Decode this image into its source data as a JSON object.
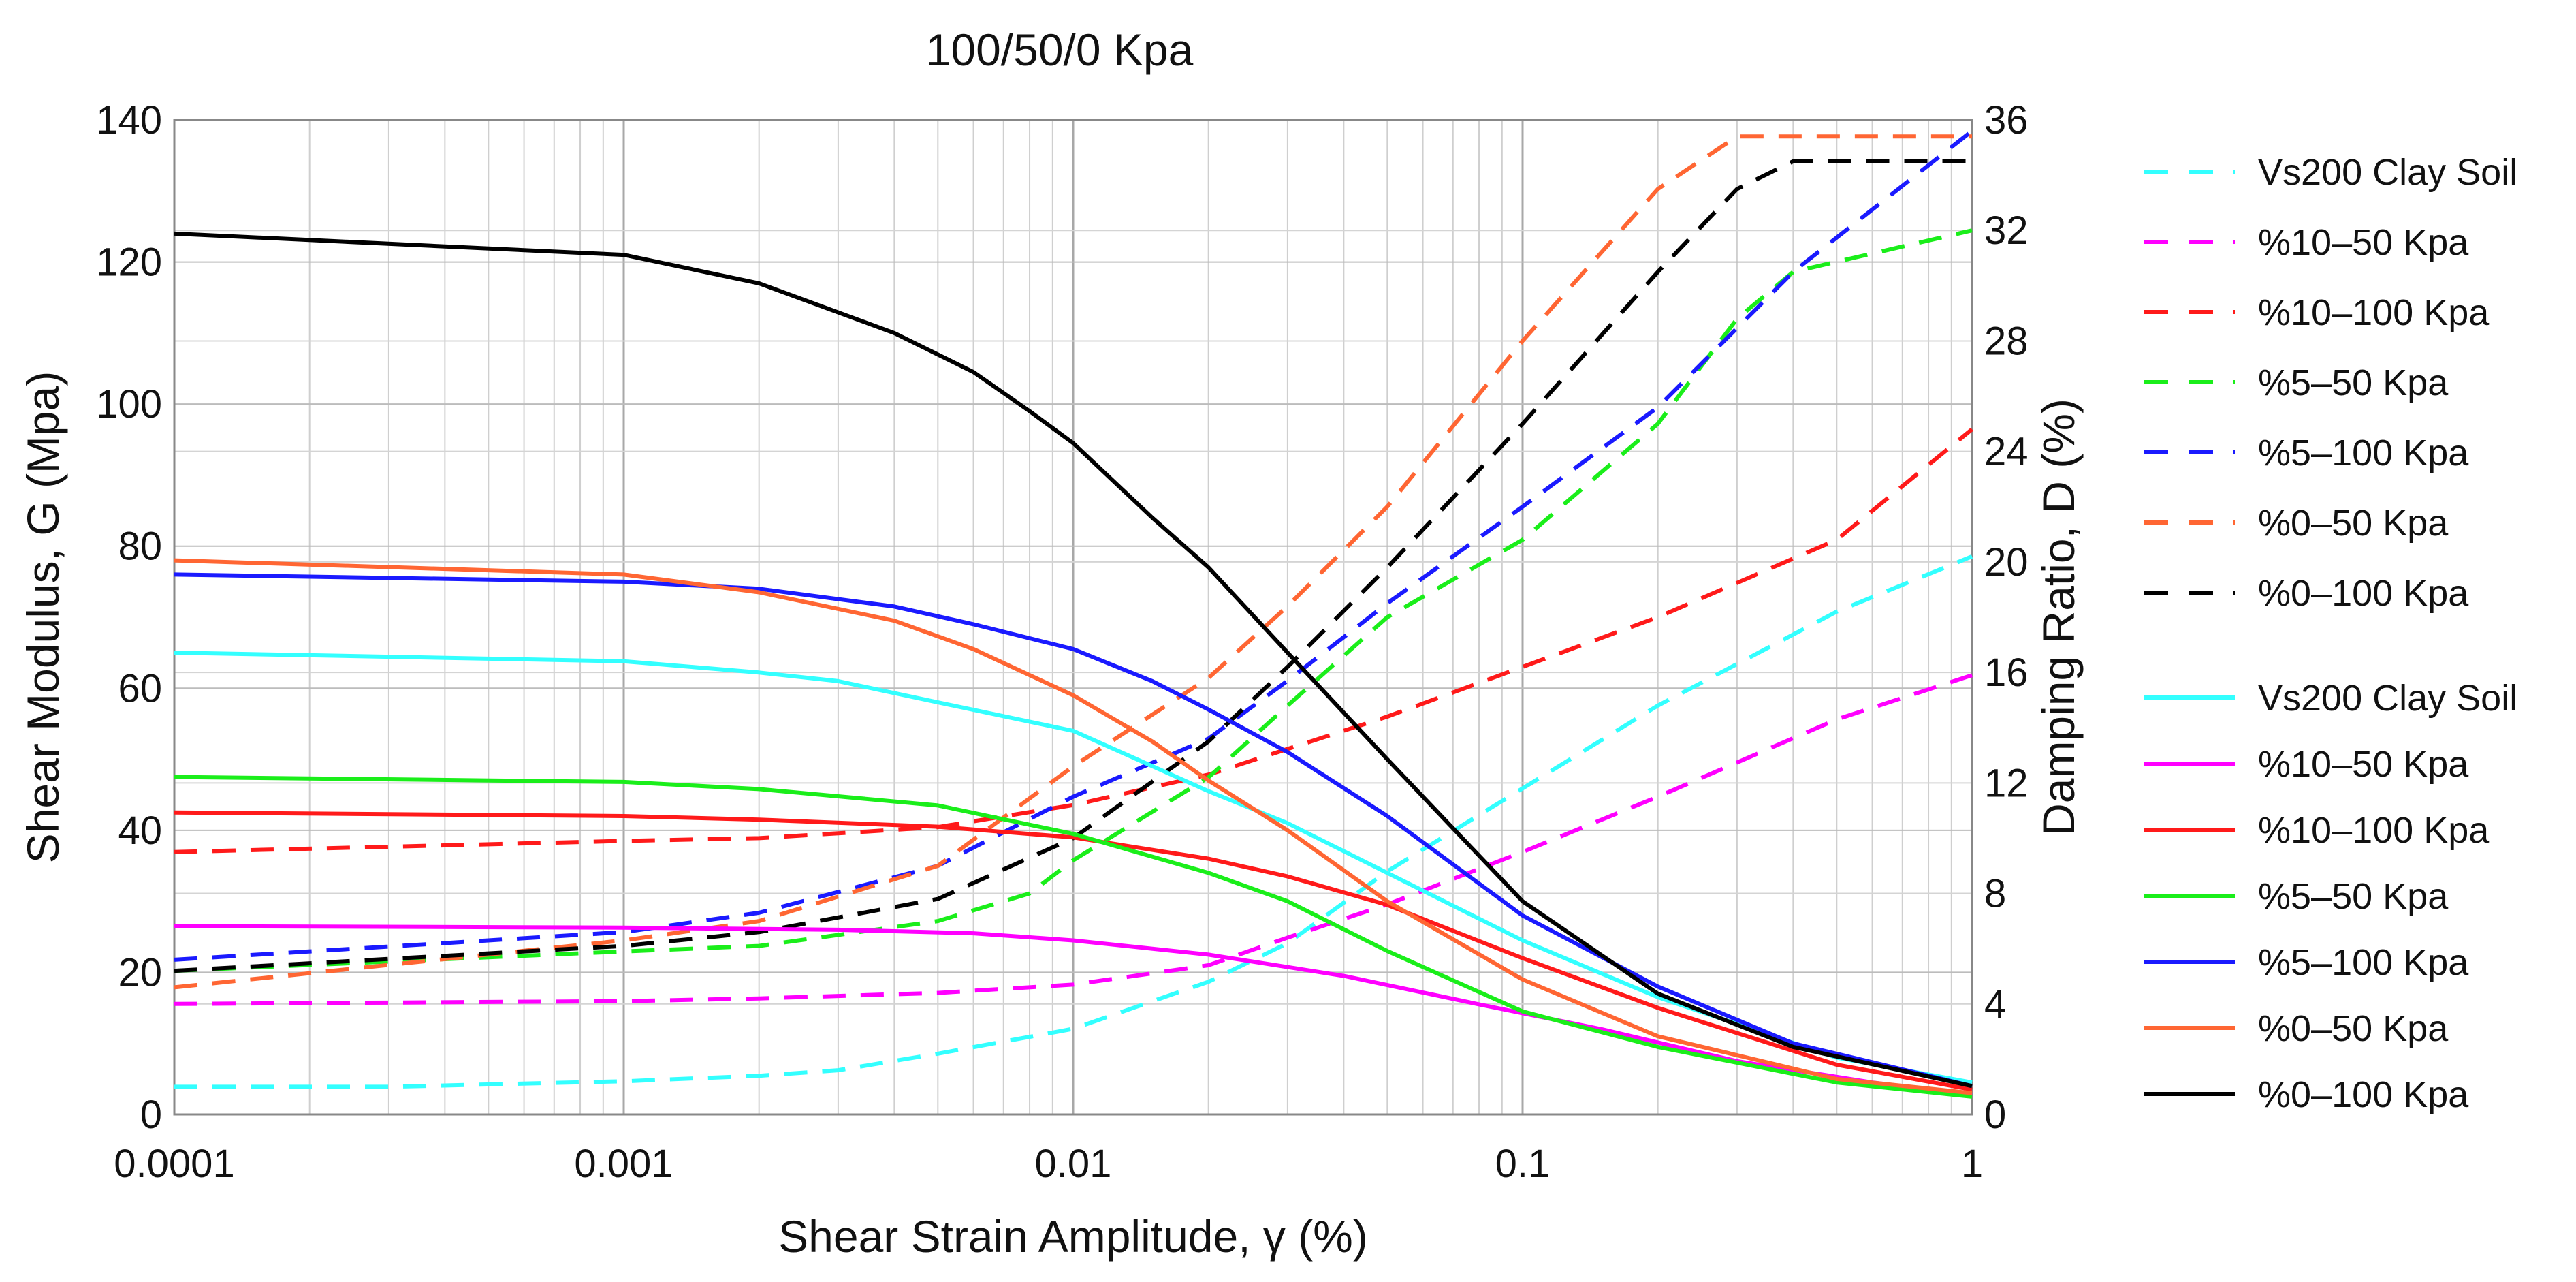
{
  "chart_data": {
    "type": "line",
    "title": "100/50/0 Kpa",
    "xlabel": "Shear Strain Amplitude, γ (%)",
    "ylabel": "Shear Modulus, G (Mpa)",
    "y2label": "Damping Ratio, D (%)",
    "xscale": "log",
    "xlim": [
      0.0001,
      1
    ],
    "ylim": [
      0,
      140
    ],
    "y2lim": [
      0,
      36
    ],
    "x_ticks": [
      {
        "value": 0.0001,
        "label": "0.0001"
      },
      {
        "value": 0.001,
        "label": "0.001"
      },
      {
        "value": 0.01,
        "label": "0.01"
      },
      {
        "value": 0.1,
        "label": "0.1"
      },
      {
        "value": 1,
        "label": "1"
      }
    ],
    "y_ticks": [
      {
        "value": 0,
        "label": "0"
      },
      {
        "value": 20,
        "label": "20"
      },
      {
        "value": 40,
        "label": "40"
      },
      {
        "value": 60,
        "label": "60"
      },
      {
        "value": 80,
        "label": "80"
      },
      {
        "value": 100,
        "label": "100"
      },
      {
        "value": 120,
        "label": "120"
      },
      {
        "value": 140,
        "label": "140"
      }
    ],
    "y2_ticks": [
      {
        "value": 0,
        "label": "0"
      },
      {
        "value": 4,
        "label": "4"
      },
      {
        "value": 8,
        "label": "8"
      },
      {
        "value": 12,
        "label": "12"
      },
      {
        "value": 16,
        "label": "16"
      },
      {
        "value": 20,
        "label": "20"
      },
      {
        "value": 24,
        "label": "24"
      },
      {
        "value": 28,
        "label": "28"
      },
      {
        "value": 32,
        "label": "32"
      },
      {
        "value": 36,
        "label": "36"
      }
    ],
    "grid": true,
    "damping_series": [
      {
        "name": "Vs200 Clay Soil",
        "color": "#33ffff",
        "style": "dashed",
        "axis": "right",
        "x": [
          0.0001,
          0.0003,
          0.001,
          0.002,
          0.003,
          0.005,
          0.01,
          0.02,
          0.03,
          0.05,
          0.1,
          0.2,
          0.5,
          1
        ],
        "y": [
          1,
          1,
          1.2,
          1.4,
          1.6,
          2.2,
          3.1,
          4.8,
          6.2,
          8.8,
          11.8,
          14.8,
          18.2,
          20.2
        ]
      },
      {
        "name": "%10–50 Kpa",
        "color": "#ff00ff",
        "style": "dashed",
        "axis": "right",
        "x": [
          0.0001,
          0.001,
          0.002,
          0.005,
          0.01,
          0.02,
          0.03,
          0.05,
          0.1,
          0.2,
          0.5,
          1
        ],
        "y": [
          4,
          4.1,
          4.2,
          4.4,
          4.7,
          5.4,
          6.4,
          7.6,
          9.5,
          11.5,
          14.3,
          15.9
        ]
      },
      {
        "name": "%10–100 Kpa",
        "color": "#ff1a1a",
        "style": "dashed",
        "axis": "right",
        "x": [
          0.0001,
          0.001,
          0.002,
          0.005,
          0.01,
          0.02,
          0.05,
          0.1,
          0.2,
          0.5,
          1
        ],
        "y": [
          9.5,
          9.9,
          10,
          10.4,
          11.2,
          12.3,
          14.4,
          16.2,
          18,
          20.8,
          24.8
        ]
      },
      {
        "name": "%5–50 Kpa",
        "color": "#1aee1a",
        "style": "dashed",
        "axis": "right",
        "x": [
          0.0001,
          0.001,
          0.002,
          0.005,
          0.008,
          0.01,
          0.02,
          0.03,
          0.05,
          0.1,
          0.2,
          0.3,
          0.4,
          1
        ],
        "y": [
          5.2,
          5.9,
          6.1,
          7,
          8,
          9.2,
          12.2,
          14.8,
          18,
          20.8,
          25,
          28.8,
          30.5,
          32
        ]
      },
      {
        "name": "%5–100 Kpa",
        "color": "#1a1aff",
        "style": "dashed",
        "axis": "right",
        "x": [
          0.0001,
          0.001,
          0.002,
          0.005,
          0.01,
          0.02,
          0.03,
          0.05,
          0.1,
          0.2,
          0.4,
          1
        ],
        "y": [
          5.6,
          6.6,
          7.3,
          9,
          11.5,
          13.6,
          15.7,
          18.5,
          22,
          25.6,
          30.5,
          35.6
        ]
      },
      {
        "name": "%0–50 Kpa",
        "color": "#ff6633",
        "style": "dashed",
        "axis": "right",
        "x": [
          0.0001,
          0.001,
          0.002,
          0.005,
          0.01,
          0.02,
          0.03,
          0.05,
          0.1,
          0.2,
          0.3,
          1
        ],
        "y": [
          4.6,
          6.3,
          7,
          9,
          12.6,
          15.8,
          18.4,
          22,
          28,
          33.5,
          35.4,
          35.4
        ]
      },
      {
        "name": "%0–100 Kpa",
        "color": "#000000",
        "style": "dashed",
        "axis": "right",
        "x": [
          0.0001,
          0.001,
          0.002,
          0.005,
          0.01,
          0.02,
          0.03,
          0.05,
          0.1,
          0.2,
          0.3,
          0.4,
          1
        ],
        "y": [
          5.2,
          6.1,
          6.6,
          7.8,
          10,
          13.5,
          16.2,
          19.8,
          25,
          30.5,
          33.5,
          34.5,
          34.5
        ]
      }
    ],
    "modulus_series": [
      {
        "name": "Vs200 Clay Soil",
        "color": "#33ffff",
        "style": "solid",
        "axis": "left",
        "x": [
          0.0001,
          0.001,
          0.002,
          0.003,
          0.005,
          0.01,
          0.02,
          0.03,
          0.05,
          0.1,
          0.2,
          0.5,
          1
        ],
        "y": [
          65,
          63.8,
          62.2,
          61,
          58,
          54,
          45.5,
          41,
          34,
          24.5,
          16.5,
          8,
          4.5
        ]
      },
      {
        "name": "%10–50 Kpa",
        "color": "#ff00ff",
        "style": "solid",
        "axis": "left",
        "x": [
          0.0001,
          0.001,
          0.003,
          0.006,
          0.01,
          0.02,
          0.04,
          0.08,
          0.15,
          0.3,
          0.6,
          1
        ],
        "y": [
          26.5,
          26.3,
          26,
          25.5,
          24.5,
          22.5,
          19.5,
          15.5,
          12,
          7.5,
          4.5,
          2.8
        ]
      },
      {
        "name": "%10–100 Kpa",
        "color": "#ff1a1a",
        "style": "solid",
        "axis": "left",
        "x": [
          0.0001,
          0.001,
          0.002,
          0.005,
          0.01,
          0.02,
          0.03,
          0.05,
          0.1,
          0.2,
          0.5,
          1
        ],
        "y": [
          42.5,
          42,
          41.5,
          40.5,
          39,
          36,
          33.5,
          29.5,
          22,
          15,
          7,
          3.5
        ]
      },
      {
        "name": "%5–50 Kpa",
        "color": "#1aee1a",
        "style": "solid",
        "axis": "left",
        "x": [
          0.0001,
          0.001,
          0.002,
          0.005,
          0.01,
          0.02,
          0.03,
          0.05,
          0.1,
          0.2,
          0.5,
          1
        ],
        "y": [
          47.5,
          46.8,
          45.8,
          43.5,
          39.5,
          34,
          30,
          23,
          14.5,
          9.5,
          4.5,
          2.5
        ]
      },
      {
        "name": "%5–100 Kpa",
        "color": "#1a1aff",
        "style": "solid",
        "axis": "left",
        "x": [
          0.0001,
          0.001,
          0.002,
          0.004,
          0.006,
          0.01,
          0.015,
          0.02,
          0.03,
          0.05,
          0.1,
          0.2,
          0.4,
          1
        ],
        "y": [
          76,
          75,
          74,
          71.5,
          69,
          65.5,
          61,
          57,
          51,
          42,
          28,
          18,
          10,
          4
        ]
      },
      {
        "name": "%0–50 Kpa",
        "color": "#ff6633",
        "style": "solid",
        "axis": "left",
        "x": [
          0.0001,
          0.001,
          0.002,
          0.004,
          0.006,
          0.01,
          0.015,
          0.02,
          0.03,
          0.05,
          0.1,
          0.2,
          0.5,
          1
        ],
        "y": [
          78,
          76,
          73.5,
          69.5,
          65.5,
          59,
          52.5,
          47,
          40,
          30,
          19,
          11,
          5,
          3
        ]
      },
      {
        "name": "%0–100 Kpa",
        "color": "#000000",
        "style": "solid",
        "axis": "left",
        "x": [
          0.0001,
          0.001,
          0.002,
          0.004,
          0.006,
          0.008,
          0.01,
          0.015,
          0.02,
          0.03,
          0.05,
          0.1,
          0.2,
          0.4,
          1
        ],
        "y": [
          124,
          121,
          117,
          110,
          104.5,
          99,
          94.5,
          84,
          77,
          65,
          50,
          30,
          17,
          9.5,
          4
        ]
      }
    ]
  }
}
